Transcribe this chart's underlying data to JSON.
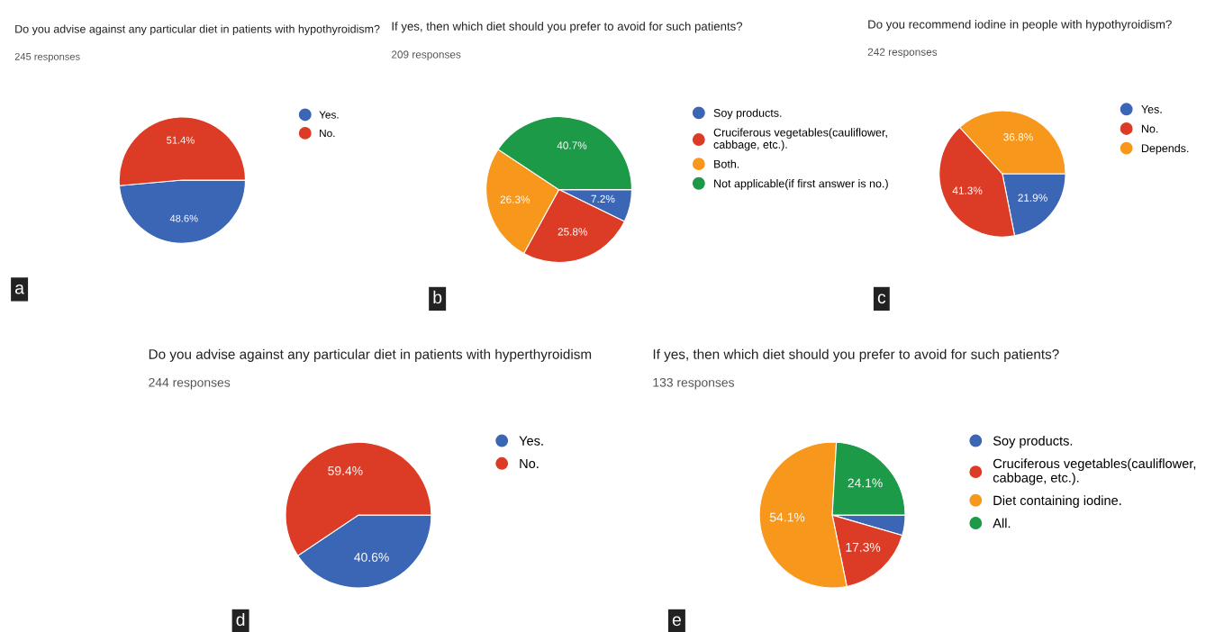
{
  "chart_data": [
    {
      "type": "pie",
      "title": "Do you advise against any particular diet in patients with hypothyroidism?",
      "subtitle": "245 responses",
      "categories": [
        "Yes.",
        "No."
      ],
      "values": [
        48.6,
        51.4
      ],
      "value_labels": [
        "48.6%",
        "51.4%"
      ],
      "colors": [
        "#3b66b5",
        "#dc3b25"
      ],
      "legend": "right",
      "annotations": [
        "a"
      ]
    },
    {
      "type": "pie",
      "title": "If yes, then which diet should you prefer to avoid for such patients?",
      "subtitle": "209 responses",
      "categories": [
        "Soy products.",
        "Cruciferous vegetables(cauliflower,\ncabbage, etc.).",
        "Both.",
        "Not applicable(if first answer is no.)"
      ],
      "values": [
        7.2,
        25.8,
        26.3,
        40.7
      ],
      "value_labels": [
        "7.2%",
        "25.8%",
        "26.3%",
        "40.7%"
      ],
      "colors": [
        "#3b66b5",
        "#dc3b25",
        "#f7981d",
        "#1c9a48"
      ],
      "legend": "right",
      "annotations": [
        "b"
      ]
    },
    {
      "type": "pie",
      "title": "Do you recommend iodine in people with hypothyroidism?",
      "subtitle": "242 responses",
      "categories": [
        "Yes.",
        "No.",
        "Depends."
      ],
      "values": [
        21.9,
        41.3,
        36.8
      ],
      "value_labels": [
        "21.9%",
        "41.3%",
        "36.8%"
      ],
      "colors": [
        "#3b66b5",
        "#dc3b25",
        "#f7981d"
      ],
      "legend": "right",
      "annotations": [
        "c"
      ]
    },
    {
      "type": "pie",
      "title": "Do you advise against any particular diet in patients with hyperthyroidism",
      "subtitle": "244 responses",
      "categories": [
        "Yes.",
        "No."
      ],
      "values": [
        40.6,
        59.4
      ],
      "value_labels": [
        "40.6%",
        "59.4%"
      ],
      "colors": [
        "#3b66b5",
        "#dc3b25"
      ],
      "legend": "right",
      "annotations": [
        "d"
      ]
    },
    {
      "type": "pie",
      "title": "If yes, then which diet should you prefer to avoid for such patients?",
      "subtitle": "133 responses",
      "categories": [
        "Soy products.",
        "Cruciferous vegetables(cauliflower,\ncabbage, etc.).",
        "Diet containing iodine.",
        "All."
      ],
      "values": [
        4.5,
        17.3,
        54.1,
        24.1
      ],
      "value_labels": [
        null,
        "17.3%",
        "54.1%",
        "24.1%"
      ],
      "colors": [
        "#3b66b5",
        "#dc3b25",
        "#f7981d",
        "#1c9a48"
      ],
      "legend": "right",
      "annotations": [
        "e"
      ]
    }
  ]
}
